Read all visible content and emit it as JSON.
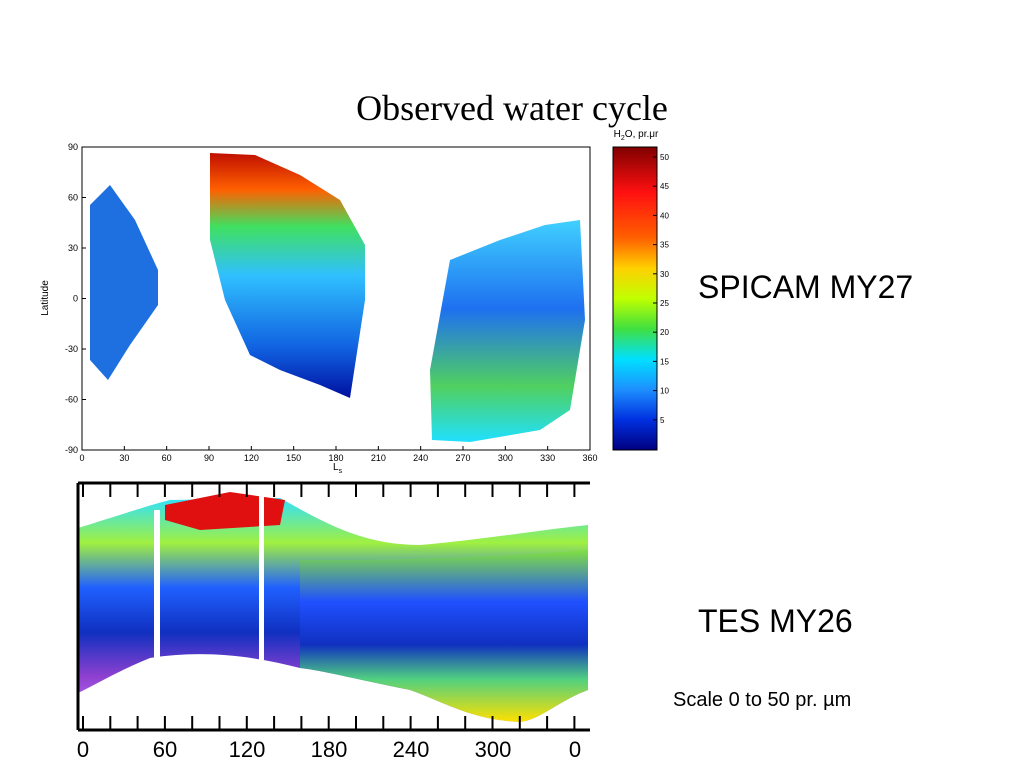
{
  "title": "Observed water cycle",
  "spicam": {
    "label": "SPICAM MY27",
    "y_label": "Latitude",
    "x_label": "L",
    "x_label_sub": "s",
    "yticks": [
      90,
      60,
      30,
      0,
      -30,
      -60,
      -90
    ],
    "xticks": [
      0,
      30,
      60,
      90,
      120,
      150,
      180,
      210,
      240,
      270,
      300,
      330,
      360
    ],
    "colorbar": {
      "title_main": "H",
      "title_sub": "2",
      "title_rest": "O, pr.μr",
      "ticks": [
        50,
        45,
        40,
        35,
        30,
        25,
        20,
        15,
        10,
        5
      ]
    }
  },
  "tes": {
    "label": "TES MY26",
    "xticks": [
      "0",
      "60",
      "120",
      "180",
      "240",
      "300",
      "0"
    ],
    "scale_note": "Scale 0 to 50 pr. µm"
  }
}
